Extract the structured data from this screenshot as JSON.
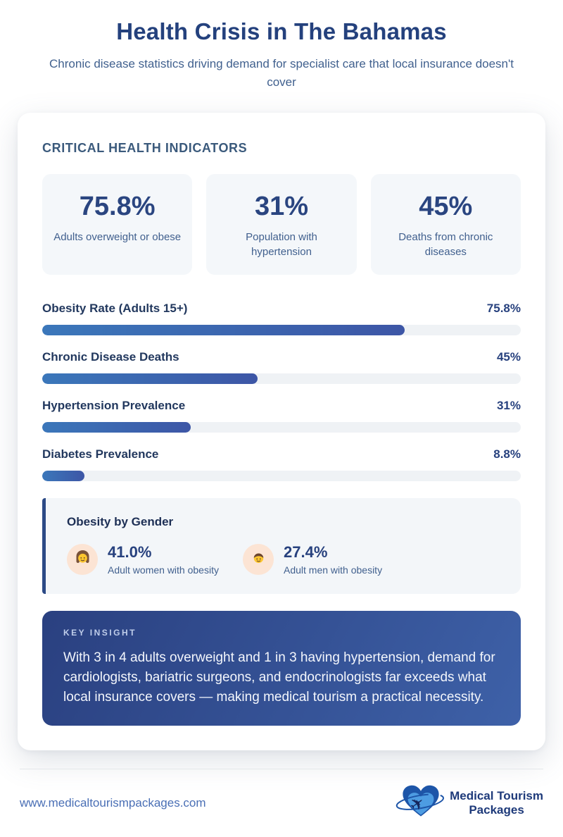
{
  "header": {
    "title": "Health Crisis in The Bahamas",
    "subtitle": "Chronic disease statistics driving demand for specialist care that local insurance doesn't cover"
  },
  "indicators": {
    "heading": "CRITICAL HEALTH INDICATORS",
    "stats": [
      {
        "value": "75.8%",
        "label": "Adults overweight or obese"
      },
      {
        "value": "31%",
        "label": "Population with hypertension"
      },
      {
        "value": "45%",
        "label": "Deaths from chronic diseases"
      }
    ]
  },
  "bars": [
    {
      "label": "Obesity Rate (Adults 15+)",
      "value": "75.8%",
      "percent": 75.8
    },
    {
      "label": "Chronic Disease Deaths",
      "value": "45%",
      "percent": 45
    },
    {
      "label": "Hypertension Prevalence",
      "value": "31%",
      "percent": 31
    },
    {
      "label": "Diabetes Prevalence",
      "value": "8.8%",
      "percent": 8.8
    }
  ],
  "gender": {
    "heading": "Obesity by Gender",
    "items": [
      {
        "icon": "woman-icon",
        "value": "41.0%",
        "label": "Adult women with obesity"
      },
      {
        "icon": "man-icon",
        "value": "27.4%",
        "label": "Adult men with obesity"
      }
    ]
  },
  "insight": {
    "label": "KEY INSIGHT",
    "text": "With 3 in 4 adults overweight and 1 in 3 having hypertension, demand for cardiologists, bariatric surgeons, and endocrinologists far exceeds what local insurance covers — making medical tourism a practical necessity."
  },
  "footer": {
    "url": "www.medicaltourismpackages.com",
    "logo_text_line1": "Medical Tourism",
    "logo_text_line2": "Packages"
  },
  "colors": {
    "title_navy": "#24417d",
    "slate_text": "#41608e",
    "stat_number": "#2a4580",
    "bar_fill_start": "#3b77ba",
    "bar_fill_end": "#3d56a6",
    "bar_track": "#eff2f5",
    "panel_bg": "#f4f7fa",
    "gender_border": "#2c4a86",
    "avatar_bg": "#fce4d4",
    "insight_bg_start": "#2a4080",
    "insight_bg_end": "#3e61a8",
    "insight_label": "#bfcdea",
    "url_blue": "#4a6fb5",
    "logo_navy": "#1e3a7a",
    "logo_heart_dark": "#1d55a8",
    "logo_heart_light": "#4d9ce2"
  },
  "chart_data": {
    "type": "bar",
    "orientation": "horizontal",
    "title": "CRITICAL HEALTH INDICATORS",
    "categories": [
      "Obesity Rate (Adults 15+)",
      "Chronic Disease Deaths",
      "Hypertension Prevalence",
      "Diabetes Prevalence"
    ],
    "values": [
      75.8,
      45,
      31,
      8.8
    ],
    "data_labels": [
      "75.8%",
      "45%",
      "31%",
      "8.8%"
    ],
    "unit": "%",
    "xlim": [
      0,
      100
    ],
    "grid": false,
    "legend": false,
    "highlight_stats": [
      {
        "value": 75.8,
        "label": "Adults overweight or obese"
      },
      {
        "value": 31,
        "label": "Population with hypertension"
      },
      {
        "value": 45,
        "label": "Deaths from chronic diseases"
      },
      {
        "value": 41.0,
        "label": "Adult women with obesity"
      },
      {
        "value": 27.4,
        "label": "Adult men with obesity"
      }
    ]
  }
}
